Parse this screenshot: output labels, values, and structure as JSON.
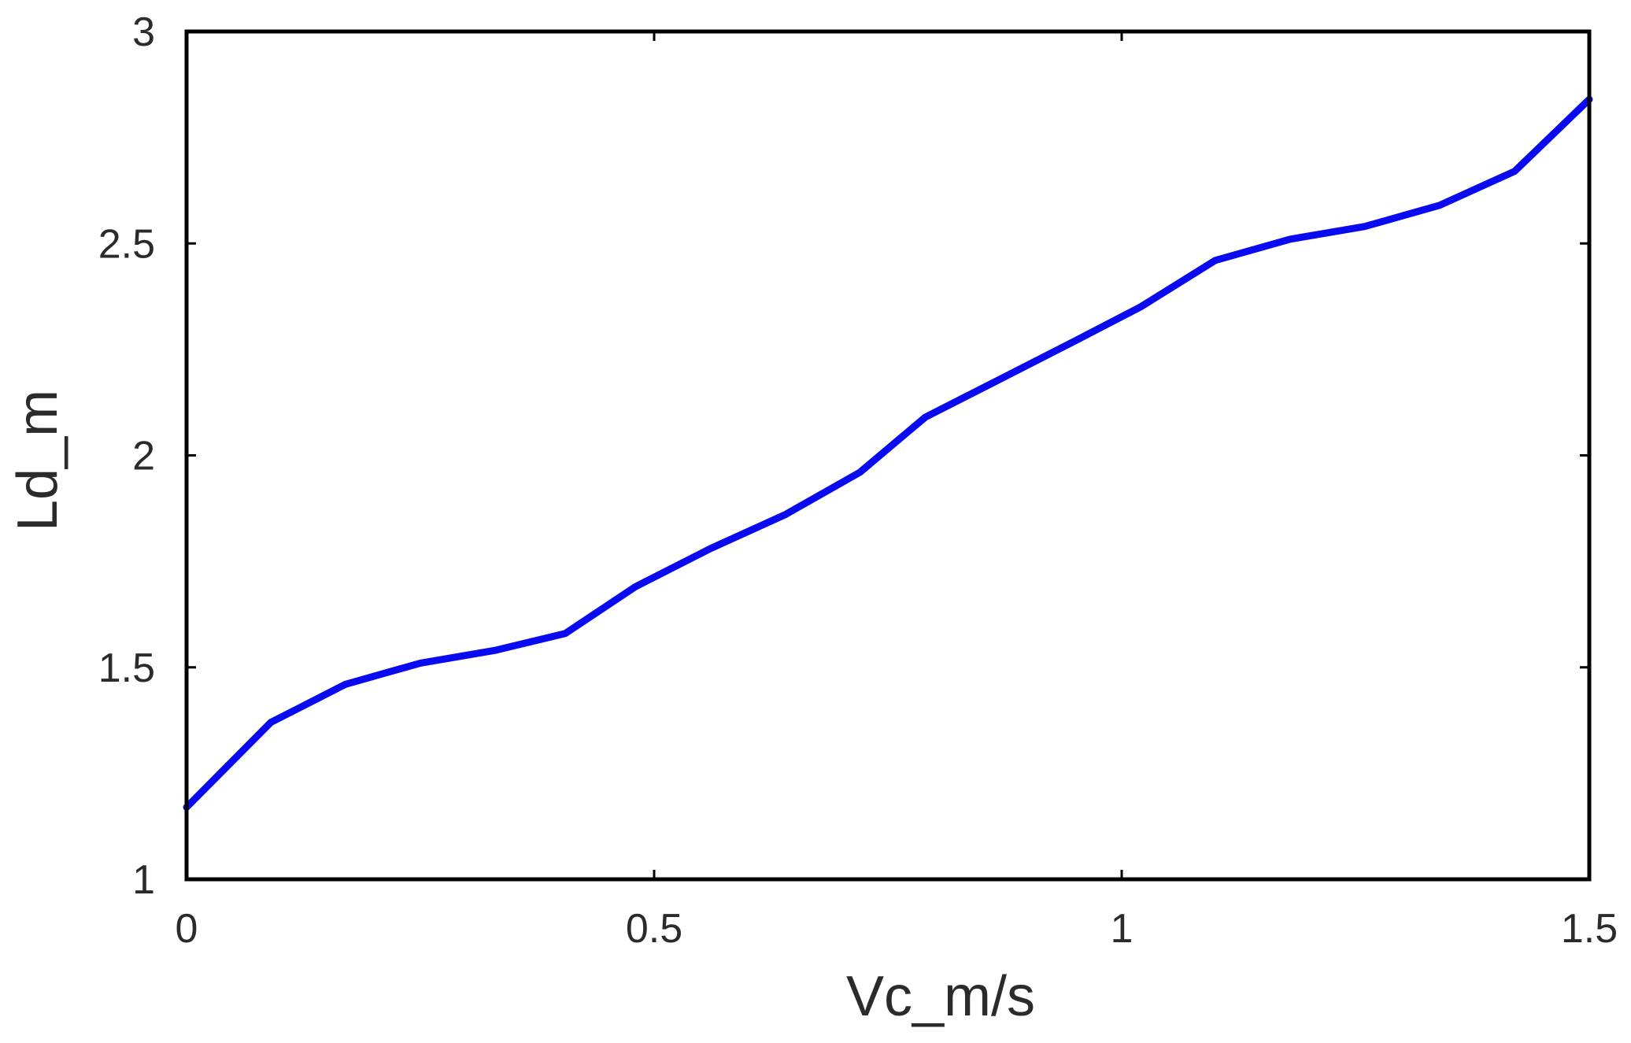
{
  "chart_data": {
    "type": "line",
    "xlabel": "Vc_m/s",
    "ylabel": "Ld_m",
    "xlim": [
      0,
      1.5
    ],
    "ylim": [
      1,
      3
    ],
    "xticks": [
      0,
      0.5,
      1,
      1.5
    ],
    "xtick_labels": [
      "0",
      "0.5",
      "1",
      "1.5"
    ],
    "yticks": [
      1,
      1.5,
      2,
      2.5,
      3
    ],
    "ytick_labels": [
      "1",
      "1.5",
      "2",
      "2.5",
      "3"
    ],
    "grid": false,
    "legend": "none",
    "series": [
      {
        "color": "#0a0af0",
        "x": [
          0,
          0.09,
          0.17,
          0.25,
          0.33,
          0.405,
          0.48,
          0.56,
          0.64,
          0.72,
          0.79,
          0.87,
          0.95,
          1.02,
          1.1,
          1.18,
          1.26,
          1.34,
          1.42,
          1.5
        ],
        "y": [
          1.17,
          1.37,
          1.46,
          1.51,
          1.54,
          1.58,
          1.69,
          1.78,
          1.86,
          1.96,
          2.09,
          2.18,
          2.27,
          2.35,
          2.46,
          2.51,
          2.54,
          2.59,
          2.67,
          2.84
        ]
      }
    ]
  }
}
